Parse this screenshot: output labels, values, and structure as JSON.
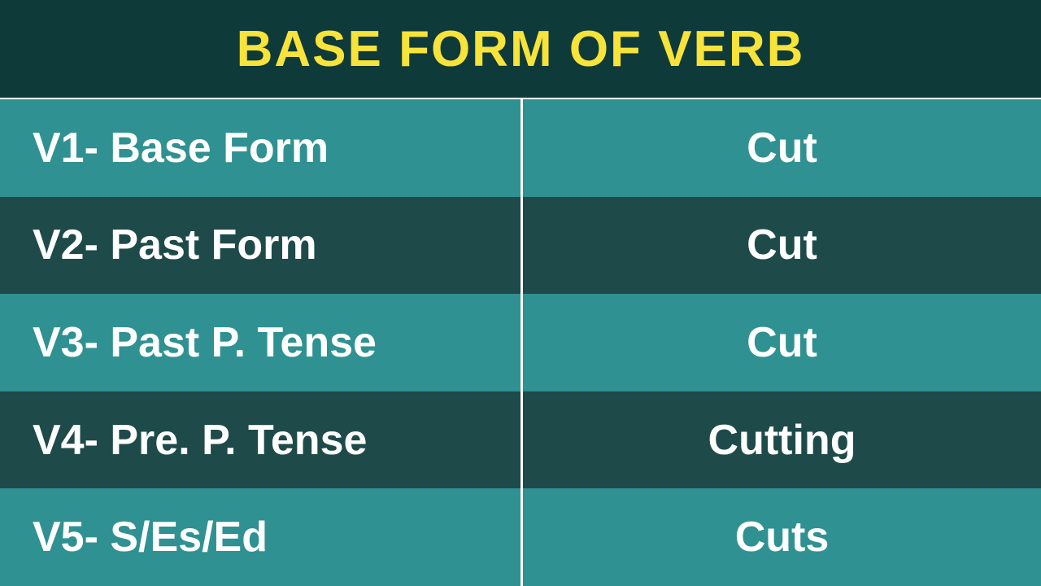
{
  "header": {
    "title": "BASE FORM OF VERB",
    "background_color": "#0e3a3a",
    "text_color": "#f7e33a",
    "font_size": 62
  },
  "table": {
    "row_colors": {
      "light": "#2f9191",
      "dark": "#1e4a4a"
    },
    "text_color": "#ffffff",
    "font_size": 52,
    "divider_color": "#ffffff",
    "rows": [
      {
        "label": "V1- Base Form",
        "value": "Cut",
        "shade": "light"
      },
      {
        "label": "V2- Past Form",
        "value": "Cut",
        "shade": "dark"
      },
      {
        "label": "V3- Past P.  Tense",
        "value": "Cut",
        "shade": "light"
      },
      {
        "label": "V4- Pre.  P. Tense",
        "value": "Cutting",
        "shade": "dark"
      },
      {
        "label": "V5- S/Es/Ed",
        "value": "Cuts",
        "shade": "light"
      }
    ]
  }
}
